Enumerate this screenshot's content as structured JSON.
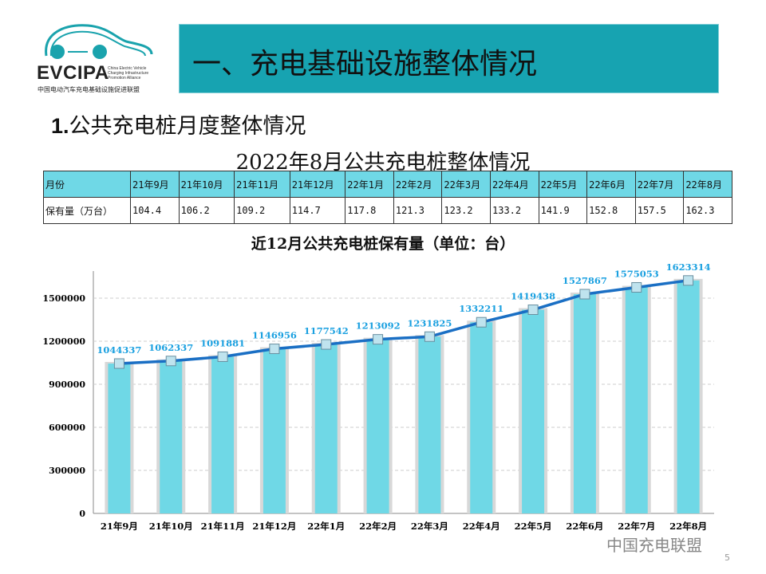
{
  "logo": {
    "name": "EVCIPA",
    "en": "China Electric Vehicle Charging Infrastructure Promotion Alliance",
    "cn": "中国电动汽车充电基础设施促进联盟"
  },
  "header": {
    "title": "一、充电基础设施整体情况"
  },
  "section": {
    "num": "1.",
    "title": "公共充电桩月度整体情况"
  },
  "table": {
    "title": "2022年8月公共充电桩整体情况",
    "header_label": "月份",
    "row_label": "保有量（万台）",
    "months": [
      "21年9月",
      "21年10月",
      "21年11月",
      "21年12月",
      "22年1月",
      "22年2月",
      "22年3月",
      "22年4月",
      "22年5月",
      "22年6月",
      "22年7月",
      "22年8月"
    ],
    "values": [
      "104.4",
      "106.2",
      "109.2",
      "114.7",
      "117.8",
      "121.3",
      "123.2",
      "133.2",
      "141.9",
      "152.8",
      "157.5",
      "162.3"
    ]
  },
  "chart_data": {
    "type": "bar+line",
    "title": "近12月公共充电桩保有量（单位：台）",
    "categories": [
      "21年9月",
      "21年10月",
      "21年11月",
      "21年12月",
      "22年1月",
      "22年2月",
      "22年3月",
      "22年4月",
      "22年5月",
      "22年6月",
      "22年7月",
      "22年8月"
    ],
    "values": [
      1044337,
      1062337,
      1091881,
      1146956,
      1177542,
      1213092,
      1231825,
      1332211,
      1419438,
      1527867,
      1575053,
      1623314
    ],
    "yticks": [
      0,
      300000,
      600000,
      900000,
      1200000,
      1500000
    ],
    "ylim": [
      0,
      1800000
    ],
    "grid": true,
    "colors": {
      "bar": "#6fd8e6",
      "line": "#1a6fc4",
      "label": "#1aa0e0"
    }
  },
  "footer": {
    "watermark": "中国充电联盟",
    "page": "5"
  }
}
